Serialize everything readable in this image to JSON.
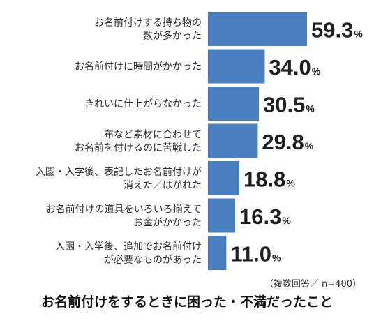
{
  "chart_data": {
    "type": "bar",
    "orientation": "horizontal",
    "title": "お名前付けをするときに困った・不満だったこと",
    "note": "（複数回答／ n=400）",
    "unit": "%",
    "bar_color": "#4a7fc1",
    "categories": [
      [
        "お名前付けする持ち物の",
        "数が多かった"
      ],
      [
        "お名前付けに時間がかかった"
      ],
      [
        "きれいに仕上がらなかった"
      ],
      [
        "布など素材に合わせて",
        "お名前を付けるのに苦戦した"
      ],
      [
        "入園・入学後、表記したお名前付けが",
        "消えた／はがれた"
      ],
      [
        "お名前付けの道具をいろいろ揃えて",
        "お金がかかった"
      ],
      [
        "入園・入学後、追加でお名前付け",
        "が必要なものがあった"
      ]
    ],
    "values": [
      59.3,
      34.0,
      30.5,
      29.8,
      18.8,
      16.3,
      11.0
    ],
    "value_labels": [
      "59.3",
      "34.0",
      "30.5",
      "29.8",
      "18.8",
      "16.3",
      "11.0"
    ]
  }
}
